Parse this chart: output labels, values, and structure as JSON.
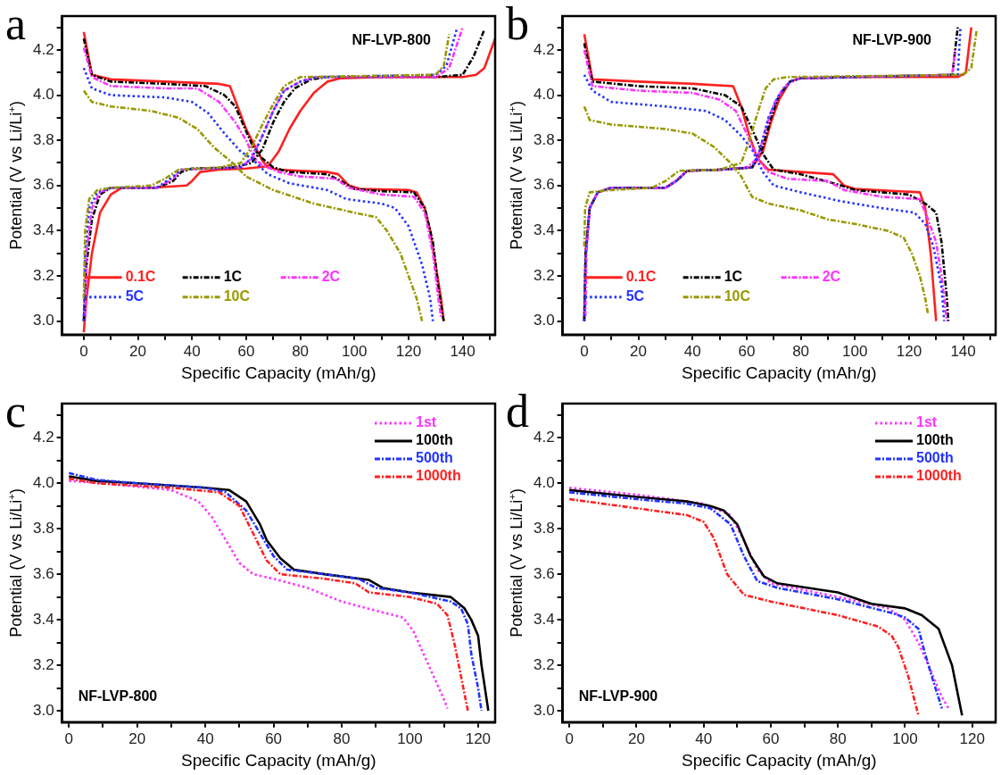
{
  "chart_data": [
    {
      "type": "line",
      "title": "a",
      "xlabel": "Specific Capacity (mAh/g)",
      "ylabel": "Potential (V vs Li/Li$^{+}$)",
      "annotations": [
        "NF-LVP-800"
      ],
      "legend": "bottom left",
      "grid": false,
      "marker": "none",
      "xlim": [
        -8,
        152
      ],
      "ylim": [
        2.94,
        4.35
      ],
      "xticks": [
        0,
        {
          "value": 10,
          "label": null
        },
        20,
        {
          "value": 30,
          "label": null
        },
        40,
        {
          "value": 50,
          "label": null
        },
        60,
        {
          "value": 70,
          "label": null
        },
        80,
        {
          "value": 90,
          "label": null
        },
        100,
        {
          "value": 110,
          "label": null
        },
        120,
        {
          "value": 130,
          "label": null
        },
        140,
        {
          "value": 150,
          "label": null
        }
      ],
      "yticks": [
        {
          "value": 3.0,
          "label": "3.0"
        },
        {
          "value": 3.1,
          "label": null
        },
        {
          "value": 3.2,
          "label": "3.2"
        },
        {
          "value": 3.3,
          "label": null
        },
        {
          "value": 3.4,
          "label": "3.4"
        },
        {
          "value": 3.5,
          "label": null
        },
        {
          "value": 3.6,
          "label": "3.6"
        },
        {
          "value": 3.7,
          "label": null
        },
        {
          "value": 3.8,
          "label": "3.8"
        },
        {
          "value": 3.9,
          "label": null
        },
        {
          "value": 4.0,
          "label": "4.0"
        },
        {
          "value": 4.1,
          "label": null
        },
        {
          "value": 4.2,
          "label": "4.2"
        },
        {
          "value": 4.3,
          "label": null
        }
      ],
      "series": [
        {
          "name": "0.1C",
          "color": "#ff2020",
          "line_style": "solid",
          "x": [
            0,
            3,
            10,
            30,
            50,
            54,
            60,
            63,
            66,
            68,
            72,
            80,
            90,
            94,
            98,
            102,
            120,
            123,
            126,
            128,
            130,
            132,
            133
          ],
          "values": [
            4.28,
            4.09,
            4.07,
            4.06,
            4.05,
            4.04,
            3.85,
            3.78,
            3.71,
            3.68,
            3.67,
            3.665,
            3.66,
            3.65,
            3.6,
            3.585,
            3.58,
            3.57,
            3.5,
            3.4,
            3.25,
            3.1,
            3.0
          ]
        },
        {
          "color": "#ff2020",
          "line_style": "solid",
          "x": [
            0,
            1,
            3,
            6,
            10,
            14,
            25,
            38,
            40,
            43,
            50,
            60,
            68,
            72,
            76,
            80,
            85,
            90,
            95,
            110,
            140,
            145,
            148,
            152
          ],
          "values": [
            2.95,
            3.1,
            3.3,
            3.48,
            3.56,
            3.59,
            3.59,
            3.6,
            3.62,
            3.66,
            3.67,
            3.675,
            3.685,
            3.75,
            3.85,
            3.93,
            4.01,
            4.06,
            4.075,
            4.08,
            4.08,
            4.09,
            4.12,
            4.25
          ]
        },
        {
          "name": "1C",
          "color": "#000000",
          "line_style": "dashed",
          "x": [
            0,
            3,
            10,
            30,
            45,
            52,
            56,
            60,
            63,
            66,
            70,
            76,
            90,
            95,
            100,
            110,
            122,
            126,
            129,
            131,
            133
          ],
          "values": [
            4.25,
            4.09,
            4.06,
            4.05,
            4.04,
            4.0,
            3.95,
            3.84,
            3.76,
            3.72,
            3.68,
            3.66,
            3.65,
            3.62,
            3.585,
            3.575,
            3.57,
            3.5,
            3.35,
            3.15,
            3.0
          ]
        },
        {
          "color": "#000000",
          "line_style": "dashed",
          "x": [
            0,
            1,
            3,
            6,
            10,
            27,
            33,
            36,
            40,
            55,
            62,
            66,
            70,
            74,
            78,
            84,
            90,
            130,
            140,
            144,
            148
          ],
          "values": [
            3.0,
            3.25,
            3.45,
            3.56,
            3.59,
            3.59,
            3.62,
            3.66,
            3.675,
            3.68,
            3.7,
            3.76,
            3.88,
            3.97,
            4.03,
            4.07,
            4.08,
            4.08,
            4.09,
            4.17,
            4.29
          ]
        },
        {
          "name": "2C",
          "color": "#ff33ff",
          "line_style": "dashed",
          "x": [
            0,
            3,
            10,
            30,
            42,
            50,
            56,
            60,
            63,
            66,
            72,
            80,
            93,
            98,
            110,
            122,
            126,
            129,
            131,
            132
          ],
          "values": [
            4.21,
            4.08,
            4.04,
            4.03,
            4.03,
            3.97,
            3.88,
            3.8,
            3.72,
            3.69,
            3.66,
            3.64,
            3.63,
            3.59,
            3.56,
            3.55,
            3.48,
            3.3,
            3.1,
            3.02
          ]
        },
        {
          "color": "#ff33ff",
          "line_style": "dashed",
          "x": [
            0.6,
            1,
            3,
            6,
            10,
            27,
            33,
            36,
            45,
            58,
            62,
            66,
            70,
            74,
            80,
            86,
            130,
            135,
            140
          ],
          "values": [
            3.02,
            3.3,
            3.5,
            3.57,
            3.59,
            3.59,
            3.63,
            3.67,
            3.675,
            3.68,
            3.72,
            3.82,
            3.93,
            4.02,
            4.06,
            4.08,
            4.08,
            4.12,
            4.3
          ]
        },
        {
          "name": "5C",
          "color": "#2233ff",
          "line_style": "dotted",
          "x": [
            0,
            3,
            10,
            30,
            40,
            46,
            52,
            58,
            62,
            68,
            76,
            90,
            97,
            110,
            115,
            120,
            125,
            128,
            129
          ],
          "values": [
            4.12,
            4.03,
            4.0,
            3.99,
            3.97,
            3.92,
            3.83,
            3.75,
            3.72,
            3.65,
            3.61,
            3.58,
            3.54,
            3.52,
            3.5,
            3.42,
            3.25,
            3.1,
            3.0
          ]
        },
        {
          "color": "#2233ff",
          "line_style": "dotted",
          "x": [
            0,
            0.5,
            2,
            5,
            10,
            27,
            33,
            36,
            45,
            58,
            62,
            66,
            70,
            74,
            80,
            86,
            130,
            134,
            138
          ],
          "values": [
            3.0,
            3.3,
            3.5,
            3.57,
            3.59,
            3.59,
            3.64,
            3.67,
            3.675,
            3.68,
            3.72,
            3.82,
            3.93,
            4.02,
            4.06,
            4.08,
            4.09,
            4.13,
            4.3
          ]
        },
        {
          "name": "10C",
          "color": "#999900",
          "line_style": "dashed",
          "x": [
            0,
            3,
            10,
            25,
            35,
            42,
            48,
            55,
            60,
            70,
            85,
            100,
            108,
            112,
            117,
            120,
            123,
            125
          ],
          "values": [
            4.02,
            3.97,
            3.95,
            3.93,
            3.9,
            3.85,
            3.77,
            3.7,
            3.64,
            3.58,
            3.52,
            3.48,
            3.46,
            3.4,
            3.3,
            3.2,
            3.1,
            3.0
          ]
        },
        {
          "color": "#999900",
          "line_style": "dashed",
          "x": [
            0,
            0.5,
            2,
            5,
            10,
            25,
            30,
            35,
            50,
            58,
            62,
            66,
            70,
            74,
            80,
            130,
            133,
            135
          ],
          "values": [
            3.1,
            3.4,
            3.54,
            3.58,
            3.59,
            3.6,
            3.63,
            3.67,
            3.68,
            3.7,
            3.77,
            3.87,
            3.96,
            4.04,
            4.08,
            4.09,
            4.13,
            4.27
          ]
        }
      ]
    },
    {
      "type": "line",
      "title": "b",
      "xlabel": "Specific Capacity (mAh/g)",
      "ylabel": "Potential (V vs Li/Li$^{+}$)",
      "annotations": [
        "NF-LVP-900"
      ],
      "legend": "bottom left",
      "grid": false,
      "marker": "none",
      "xlim": [
        -8,
        152
      ],
      "ylim": [
        2.94,
        4.35
      ],
      "xticks": [
        0,
        {
          "value": 10,
          "label": null
        },
        20,
        {
          "value": 30,
          "label": null
        },
        40,
        {
          "value": 50,
          "label": null
        },
        60,
        {
          "value": 70,
          "label": null
        },
        80,
        {
          "value": 90,
          "label": null
        },
        100,
        {
          "value": 110,
          "label": null
        },
        120,
        {
          "value": 130,
          "label": null
        },
        140,
        {
          "value": 150,
          "label": null
        }
      ],
      "yticks": [
        {
          "value": 3.0,
          "label": "3.0"
        },
        {
          "value": 3.1,
          "label": null
        },
        {
          "value": 3.2,
          "label": "3.2"
        },
        {
          "value": 3.3,
          "label": null
        },
        {
          "value": 3.4,
          "label": "3.4"
        },
        {
          "value": 3.5,
          "label": null
        },
        {
          "value": 3.6,
          "label": "3.6"
        },
        {
          "value": 3.7,
          "label": null
        },
        {
          "value": 3.8,
          "label": "3.8"
        },
        {
          "value": 3.9,
          "label": null
        },
        {
          "value": 4.0,
          "label": "4.0"
        },
        {
          "value": 4.1,
          "label": null
        },
        {
          "value": 4.2,
          "label": "4.2"
        },
        {
          "value": 4.3,
          "label": null
        }
      ],
      "series": [
        {
          "name": "0.1C",
          "color": "#ff2020",
          "line_style": "solid",
          "x": [
            0,
            3,
            20,
            40,
            55,
            58,
            61,
            64,
            68,
            80,
            92,
            96,
            100,
            124,
            126,
            128,
            129,
            130
          ],
          "values": [
            4.27,
            4.07,
            4.06,
            4.05,
            4.04,
            3.95,
            3.82,
            3.72,
            3.67,
            3.66,
            3.65,
            3.6,
            3.585,
            3.57,
            3.5,
            3.3,
            3.15,
            3.0
          ]
        },
        {
          "color": "#ff2020",
          "line_style": "solid",
          "x": [
            0,
            0.5,
            2,
            5,
            10,
            30,
            34,
            38,
            50,
            62,
            66,
            69,
            72,
            76,
            80,
            100,
            138,
            141,
            143
          ],
          "values": [
            3.0,
            3.3,
            3.5,
            3.57,
            3.59,
            3.59,
            3.62,
            3.665,
            3.67,
            3.68,
            3.75,
            3.88,
            3.98,
            4.06,
            4.075,
            4.08,
            4.08,
            4.1,
            4.3
          ]
        },
        {
          "name": "1C",
          "color": "#000000",
          "line_style": "dashed",
          "x": [
            0,
            3,
            20,
            40,
            52,
            58,
            62,
            66,
            70,
            80,
            95,
            100,
            120,
            126,
            130,
            132,
            134,
            134.5
          ],
          "values": [
            4.23,
            4.06,
            4.04,
            4.03,
            4.0,
            3.95,
            3.85,
            3.74,
            3.67,
            3.65,
            3.6,
            3.58,
            3.56,
            3.52,
            3.48,
            3.35,
            3.1,
            3.0
          ]
        },
        {
          "color": "#000000",
          "line_style": "dashed",
          "x": [
            0,
            0.5,
            2,
            5,
            10,
            30,
            34,
            38,
            50,
            62,
            66,
            69,
            72,
            76,
            80,
            136,
            138
          ],
          "values": [
            3.0,
            3.3,
            3.5,
            3.57,
            3.59,
            3.59,
            3.62,
            3.665,
            3.67,
            3.68,
            3.77,
            3.9,
            4.0,
            4.06,
            4.075,
            4.09,
            4.3
          ]
        },
        {
          "name": "2C",
          "color": "#ff33ff",
          "line_style": "dashed",
          "x": [
            0,
            3,
            20,
            40,
            50,
            56,
            60,
            64,
            68,
            75,
            90,
            96,
            110,
            124,
            127,
            130,
            132,
            134
          ],
          "values": [
            4.2,
            4.04,
            4.02,
            4.01,
            3.98,
            3.93,
            3.83,
            3.72,
            3.66,
            3.63,
            3.62,
            3.58,
            3.55,
            3.54,
            3.45,
            3.35,
            3.2,
            3.0
          ]
        },
        {
          "color": "#ff33ff",
          "line_style": "dashed",
          "x": [
            0.4,
            0.8,
            2,
            5,
            10,
            30,
            34,
            38,
            50,
            60,
            64,
            67,
            70,
            74,
            79,
            136,
            137
          ],
          "values": [
            3.02,
            3.3,
            3.5,
            3.57,
            3.59,
            3.59,
            3.62,
            3.665,
            3.67,
            3.68,
            3.72,
            3.85,
            3.96,
            4.04,
            4.075,
            4.09,
            4.2
          ]
        },
        {
          "name": "5C",
          "color": "#2233ff",
          "line_style": "dotted",
          "x": [
            0,
            3,
            10,
            30,
            45,
            52,
            58,
            62,
            66,
            70,
            80,
            95,
            110,
            122,
            126,
            129,
            132,
            133
          ],
          "values": [
            4.09,
            4.02,
            3.97,
            3.95,
            3.93,
            3.89,
            3.82,
            3.76,
            3.66,
            3.6,
            3.57,
            3.53,
            3.5,
            3.48,
            3.43,
            3.33,
            3.15,
            3.0
          ]
        },
        {
          "color": "#2233ff",
          "line_style": "dotted",
          "x": [
            0,
            0.5,
            2,
            5,
            10,
            30,
            34,
            38,
            50,
            62,
            65,
            68,
            72,
            76,
            80,
            138,
            139
          ],
          "values": [
            3.0,
            3.3,
            3.5,
            3.57,
            3.59,
            3.59,
            3.62,
            3.665,
            3.67,
            3.68,
            3.76,
            3.9,
            4.0,
            4.06,
            4.075,
            4.09,
            4.3
          ]
        },
        {
          "name": "10C",
          "color": "#999900",
          "line_style": "dashed",
          "x": [
            0,
            2,
            10,
            30,
            40,
            48,
            54,
            58,
            62,
            68,
            80,
            90,
            100,
            112,
            118,
            121,
            124,
            126,
            127
          ],
          "values": [
            3.95,
            3.89,
            3.87,
            3.85,
            3.83,
            3.77,
            3.7,
            3.64,
            3.55,
            3.52,
            3.49,
            3.45,
            3.43,
            3.4,
            3.37,
            3.3,
            3.2,
            3.1,
            3.03
          ]
        },
        {
          "color": "#999900",
          "line_style": "dashed",
          "x": [
            0,
            0.3,
            2,
            10,
            25,
            30,
            35,
            50,
            58,
            61,
            64,
            67,
            70,
            75,
            140,
            143,
            145
          ],
          "values": [
            3.33,
            3.5,
            3.57,
            3.58,
            3.59,
            3.62,
            3.665,
            3.67,
            3.7,
            3.8,
            3.92,
            4.03,
            4.07,
            4.08,
            4.09,
            4.12,
            4.29
          ]
        }
      ]
    },
    {
      "type": "line",
      "title": "c",
      "xlabel": "Specific Capacity (mAh/g)",
      "ylabel": "Potential (V vs Li/Li$^{+}$)",
      "annotations": [
        "NF-LVP-800"
      ],
      "legend": "top right",
      "grid": false,
      "marker": "none",
      "xlim": [
        -2,
        125
      ],
      "ylim": [
        2.95,
        4.35
      ],
      "xticks": [
        0,
        {
          "value": 10,
          "label": null
        },
        20,
        {
          "value": 30,
          "label": null
        },
        40,
        {
          "value": 50,
          "label": null
        },
        60,
        {
          "value": 70,
          "label": null
        },
        80,
        {
          "value": 90,
          "label": null
        },
        100,
        {
          "value": 110,
          "label": null
        },
        120
      ],
      "yticks": [
        {
          "value": 3.0,
          "label": "3.0"
        },
        {
          "value": 3.1,
          "label": null
        },
        {
          "value": 3.2,
          "label": "3.2"
        },
        {
          "value": 3.3,
          "label": null
        },
        {
          "value": 3.4,
          "label": "3.4"
        },
        {
          "value": 3.5,
          "label": null
        },
        {
          "value": 3.6,
          "label": "3.6"
        },
        {
          "value": 3.7,
          "label": null
        },
        {
          "value": 3.8,
          "label": "3.8"
        },
        {
          "value": 3.9,
          "label": null
        },
        {
          "value": 4.0,
          "label": "4.0"
        },
        {
          "value": 4.1,
          "label": null
        },
        {
          "value": 4.2,
          "label": "4.2"
        },
        {
          "value": 4.3,
          "label": null
        }
      ],
      "series": [
        {
          "name": "1st",
          "color": "#ff33ff",
          "line_style": "dotted",
          "x": [
            0,
            10,
            30,
            38,
            42,
            46,
            50,
            54,
            60,
            70,
            80,
            90,
            98,
            101,
            104,
            107,
            110,
            111
          ],
          "values": [
            4.01,
            4.0,
            3.97,
            3.92,
            3.85,
            3.75,
            3.65,
            3.6,
            3.58,
            3.54,
            3.48,
            3.44,
            3.41,
            3.35,
            3.25,
            3.15,
            3.05,
            3.01
          ]
        },
        {
          "name": "100th",
          "color": "#000000",
          "line_style": "solid",
          "x": [
            0,
            8,
            20,
            30,
            40,
            47,
            52,
            54,
            56,
            58,
            62,
            66,
            75,
            88,
            92,
            100,
            112,
            116,
            118,
            120,
            121,
            123
          ],
          "values": [
            4.03,
            4.01,
            4.0,
            3.99,
            3.98,
            3.97,
            3.92,
            3.87,
            3.82,
            3.75,
            3.67,
            3.62,
            3.6,
            3.575,
            3.54,
            3.52,
            3.5,
            3.45,
            3.4,
            3.33,
            3.2,
            3.0
          ]
        },
        {
          "name": "500th",
          "color": "#2233ff",
          "line_style": "dashed",
          "x": [
            0,
            8,
            20,
            40,
            46,
            52,
            56,
            60,
            64,
            75,
            85,
            90,
            100,
            112,
            115,
            117,
            118,
            120,
            121
          ],
          "values": [
            4.045,
            4.015,
            4.0,
            3.98,
            3.96,
            3.88,
            3.78,
            3.68,
            3.62,
            3.6,
            3.58,
            3.54,
            3.52,
            3.48,
            3.45,
            3.38,
            3.25,
            3.1,
            3.0
          ]
        },
        {
          "name": "1000th",
          "color": "#ff2020",
          "line_style": "dashed",
          "x": [
            0,
            8,
            30,
            44,
            50,
            54,
            58,
            62,
            75,
            84,
            88,
            100,
            108,
            111,
            113,
            115,
            117
          ],
          "values": [
            4.02,
            4.0,
            3.98,
            3.96,
            3.9,
            3.78,
            3.66,
            3.6,
            3.58,
            3.56,
            3.52,
            3.5,
            3.47,
            3.42,
            3.3,
            3.15,
            3.0
          ]
        }
      ]
    },
    {
      "type": "line",
      "title": "d",
      "xlabel": "Specific Capacity (mAh/g)",
      "ylabel": "Potential (V vs Li/Li$^{+}$)",
      "annotations": [
        "NF-LVP-900"
      ],
      "legend": "top right",
      "grid": false,
      "marker": "none",
      "xlim": [
        -2,
        127
      ],
      "ylim": [
        2.95,
        4.35
      ],
      "xticks": [
        0,
        {
          "value": 10,
          "label": null
        },
        20,
        {
          "value": 30,
          "label": null
        },
        40,
        {
          "value": 50,
          "label": null
        },
        60,
        {
          "value": 70,
          "label": null
        },
        80,
        {
          "value": 90,
          "label": null
        },
        100,
        {
          "value": 110,
          "label": null
        },
        120
      ],
      "yticks": [
        {
          "value": 3.0,
          "label": "3.0"
        },
        {
          "value": 3.1,
          "label": null
        },
        {
          "value": 3.2,
          "label": "3.2"
        },
        {
          "value": 3.3,
          "label": null
        },
        {
          "value": 3.4,
          "label": "3.4"
        },
        {
          "value": 3.5,
          "label": null
        },
        {
          "value": 3.6,
          "label": "3.6"
        },
        {
          "value": 3.7,
          "label": null
        },
        {
          "value": 3.8,
          "label": "3.8"
        },
        {
          "value": 3.9,
          "label": null
        },
        {
          "value": 4.0,
          "label": "4.0"
        },
        {
          "value": 4.1,
          "label": null
        },
        {
          "value": 4.2,
          "label": "4.2"
        },
        {
          "value": 4.3,
          "label": null
        }
      ],
      "series": [
        {
          "name": "1st",
          "color": "#ff33ff",
          "line_style": "dotted",
          "x": [
            0,
            20,
            40,
            48,
            52,
            56,
            60,
            80,
            95,
            100,
            104,
            107,
            111,
            113
          ],
          "values": [
            3.98,
            3.95,
            3.91,
            3.86,
            3.75,
            3.62,
            3.56,
            3.5,
            3.45,
            3.4,
            3.3,
            3.2,
            3.06,
            3.01
          ]
        },
        {
          "name": "100th",
          "color": "#000000",
          "line_style": "solid",
          "x": [
            0,
            20,
            35,
            42,
            46,
            50,
            54,
            58,
            62,
            80,
            90,
            100,
            105,
            110,
            114,
            117
          ],
          "values": [
            3.97,
            3.94,
            3.92,
            3.9,
            3.88,
            3.82,
            3.68,
            3.59,
            3.56,
            3.52,
            3.47,
            3.45,
            3.42,
            3.36,
            3.2,
            2.98
          ]
        },
        {
          "name": "500th",
          "color": "#2233ff",
          "line_style": "dashed",
          "x": [
            0,
            20,
            35,
            42,
            48,
            52,
            56,
            62,
            80,
            96,
            100,
            104,
            106,
            108,
            111
          ],
          "values": [
            3.96,
            3.93,
            3.91,
            3.89,
            3.82,
            3.68,
            3.57,
            3.54,
            3.49,
            3.43,
            3.41,
            3.36,
            3.25,
            3.15,
            3.01
          ]
        },
        {
          "name": "1000th",
          "color": "#ff2020",
          "line_style": "dashed",
          "x": [
            0,
            20,
            35,
            40,
            43,
            47,
            52,
            60,
            80,
            92,
            96,
            98,
            101,
            104
          ],
          "values": [
            3.93,
            3.89,
            3.86,
            3.83,
            3.76,
            3.6,
            3.51,
            3.48,
            3.42,
            3.37,
            3.33,
            3.28,
            3.15,
            2.98
          ]
        }
      ]
    }
  ]
}
